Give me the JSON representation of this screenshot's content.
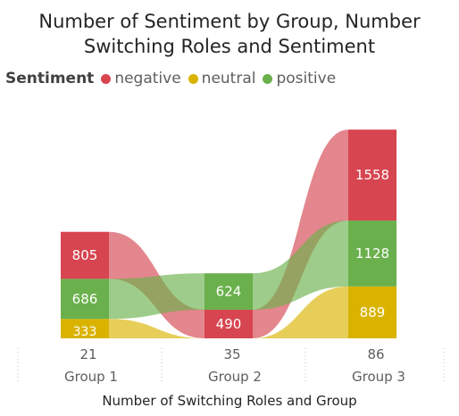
{
  "title_line1": "Number of Sentiment by Group, Number",
  "title_line2": "Switching Roles and Sentiment",
  "legend": {
    "heading": "Sentiment",
    "items": [
      {
        "label": "negative",
        "color": "#d64550"
      },
      {
        "label": "neutral",
        "color": "#d9b300"
      },
      {
        "label": "positive",
        "color": "#6ab04c"
      }
    ]
  },
  "chart_data": {
    "type": "bar",
    "subtype": "stacked-ribbon",
    "title": "Number of Sentiment by Group, Number Switching Roles and Sentiment",
    "xlabel": "Number of Switching Roles and Group",
    "categories": [
      {
        "value": "21",
        "group": "Group 1"
      },
      {
        "value": "35",
        "group": "Group 2"
      },
      {
        "value": "86",
        "group": "Group 3"
      }
    ],
    "series": [
      {
        "name": "negative",
        "color": "#d64550",
        "values": [
          805,
          490,
          1558
        ]
      },
      {
        "name": "neutral",
        "color": "#d9b300",
        "values": [
          333,
          0,
          889
        ]
      },
      {
        "name": "positive",
        "color": "#6ab04c",
        "values": [
          686,
          624,
          1128
        ]
      }
    ],
    "stack_order": [
      [
        "neutral",
        "positive",
        "negative"
      ],
      [
        "neutral",
        "negative",
        "positive"
      ],
      [
        "neutral",
        "positive",
        "negative"
      ]
    ]
  }
}
